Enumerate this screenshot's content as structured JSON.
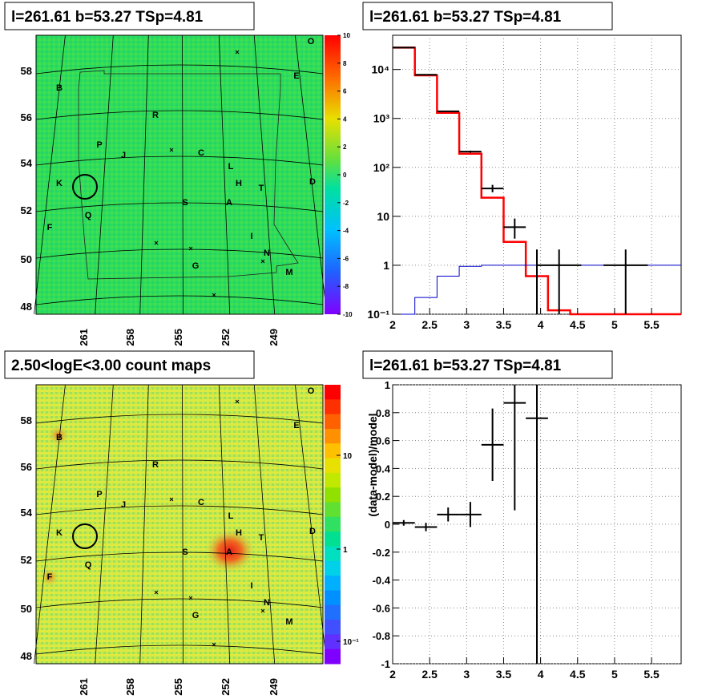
{
  "panels": {
    "tl": {
      "title": "l=261.61 b=53.27 TSp=4.81"
    },
    "tr": {
      "title": "l=261.61 b=53.27 TSp=4.81"
    },
    "bl": {
      "title": "2.50<logE<3.00 count maps"
    },
    "br": {
      "title": "l=261.61 b=53.27 TSp=4.81"
    }
  },
  "colors": {
    "residual_bg": "#2ee05a",
    "count_bg": "#c6e84a",
    "hotspot": "#e8321e",
    "model_red": "#ff0000",
    "model_blue": "#0000cc",
    "data_black": "#000000"
  },
  "chart_data": [
    {
      "id": "residual-map",
      "type": "heatmap",
      "x_ticks": [
        "261",
        "258",
        "255",
        "252",
        "249"
      ],
      "y_ticks": [
        "48",
        "50",
        "52",
        "54",
        "56",
        "58"
      ],
      "colorbar_ticks": [
        "10",
        "8",
        "6",
        "4",
        "2",
        "0",
        "-2",
        "-4",
        "-6",
        "-8",
        "-10"
      ],
      "colorbar_range": [
        -10,
        10
      ],
      "source_labels": [
        "O",
        "E",
        "B",
        "R",
        "P",
        "J",
        "C",
        "L",
        "D",
        "K",
        "H",
        "T",
        "S",
        "A",
        "Q",
        "F",
        "I",
        "N",
        "G",
        "M"
      ]
    },
    {
      "id": "spectrum",
      "type": "line",
      "log_y": true,
      "xlim": [
        2,
        5.9
      ],
      "ylim": [
        0.1,
        50000
      ],
      "x_ticks": [
        "2",
        "2.5",
        "3",
        "3.5",
        "4",
        "4.5",
        "5",
        "5.5"
      ],
      "y_ticks": [
        "10⁻¹",
        "1",
        "10",
        "10²",
        "10³",
        "10⁴"
      ],
      "grid": true,
      "series": [
        {
          "color": "red",
          "step_edges": [
            2.0,
            2.3,
            2.6,
            2.9,
            3.2,
            3.5,
            3.8,
            4.1,
            4.4,
            4.7,
            5.0,
            5.3,
            5.6,
            5.9
          ],
          "values": [
            28000,
            7600,
            1300,
            190,
            24,
            3,
            0.6,
            0.12,
            0.1,
            0.1,
            0.1,
            0.1,
            0.1
          ]
        },
        {
          "color": "blue",
          "step_edges": [
            2.0,
            2.3,
            2.6,
            2.9,
            3.2,
            3.5,
            3.8,
            4.1,
            4.4,
            4.7,
            5.0,
            5.3,
            5.6,
            5.9
          ],
          "values": [
            0.05,
            0.22,
            0.6,
            0.95,
            1,
            1,
            1,
            1,
            1,
            1,
            1,
            1,
            1
          ]
        },
        {
          "color": "black",
          "points": [
            {
              "x": 2.15,
              "y": 28000,
              "xerr": 0.15,
              "ylo": 27800,
              "yhi": 28200
            },
            {
              "x": 2.45,
              "y": 7800,
              "xerr": 0.15,
              "ylo": 7700,
              "yhi": 7900
            },
            {
              "x": 2.75,
              "y": 1400,
              "xerr": 0.15,
              "ylo": 1360,
              "yhi": 1440
            },
            {
              "x": 3.05,
              "y": 210,
              "xerr": 0.15,
              "ylo": 200,
              "yhi": 220
            },
            {
              "x": 3.35,
              "y": 37,
              "xerr": 0.15,
              "ylo": 31,
              "yhi": 44
            },
            {
              "x": 3.65,
              "y": 6,
              "xerr": 0.15,
              "ylo": 3.5,
              "yhi": 9
            },
            {
              "x": 3.95,
              "y": 1,
              "xerr": 0.0,
              "ylo": 0.1,
              "yhi": 2.1
            },
            {
              "x": 4.25,
              "y": 1,
              "xerr": 0.3,
              "ylo": 0.1,
              "yhi": 2.1
            },
            {
              "x": 5.15,
              "y": 1,
              "xerr": 0.3,
              "ylo": 0.1,
              "yhi": 2.1
            }
          ]
        }
      ]
    },
    {
      "id": "count-map",
      "type": "heatmap",
      "x_ticks": [
        "261",
        "258",
        "255",
        "252",
        "249"
      ],
      "y_ticks": [
        "48",
        "50",
        "52",
        "54",
        "56",
        "58"
      ],
      "colorbar_ticks": [
        "10",
        "1",
        "10⁻¹"
      ],
      "colorbar_log": true,
      "source_labels": [
        "O",
        "E",
        "B",
        "R",
        "P",
        "J",
        "C",
        "L",
        "D",
        "K",
        "H",
        "T",
        "S",
        "A",
        "Q",
        "F",
        "I",
        "N",
        "G",
        "M"
      ]
    },
    {
      "id": "residuals",
      "type": "scatter",
      "xlim": [
        2,
        5.9
      ],
      "ylim": [
        -1,
        1
      ],
      "ylabel": "(data-model)/model",
      "x_ticks": [
        "2",
        "2.5",
        "3",
        "3.5",
        "4",
        "4.5",
        "5",
        "5.5"
      ],
      "y_ticks": [
        "-1",
        "-0.8",
        "-0.6",
        "-0.4",
        "-0.2",
        "0",
        "0.2",
        "0.4",
        "0.6",
        "0.8",
        "1"
      ],
      "grid": true,
      "points": [
        {
          "x": 2.15,
          "y": 0.01,
          "xerr": 0.15,
          "ylo": -0.01,
          "yhi": 0.03
        },
        {
          "x": 2.45,
          "y": -0.02,
          "xerr": 0.15,
          "ylo": -0.05,
          "yhi": 0.01
        },
        {
          "x": 2.75,
          "y": 0.07,
          "xerr": 0.15,
          "ylo": 0.02,
          "yhi": 0.12
        },
        {
          "x": 3.05,
          "y": 0.07,
          "xerr": 0.15,
          "ylo": -0.02,
          "yhi": 0.16
        },
        {
          "x": 3.35,
          "y": 0.57,
          "xerr": 0.15,
          "ylo": 0.31,
          "yhi": 0.83
        },
        {
          "x": 3.65,
          "y": 0.87,
          "xerr": 0.15,
          "ylo": 0.1,
          "yhi": 1.0
        },
        {
          "x": 3.95,
          "y": 0.76,
          "xerr": 0.15,
          "ylo": -1.0,
          "yhi": 1.0
        }
      ]
    }
  ]
}
